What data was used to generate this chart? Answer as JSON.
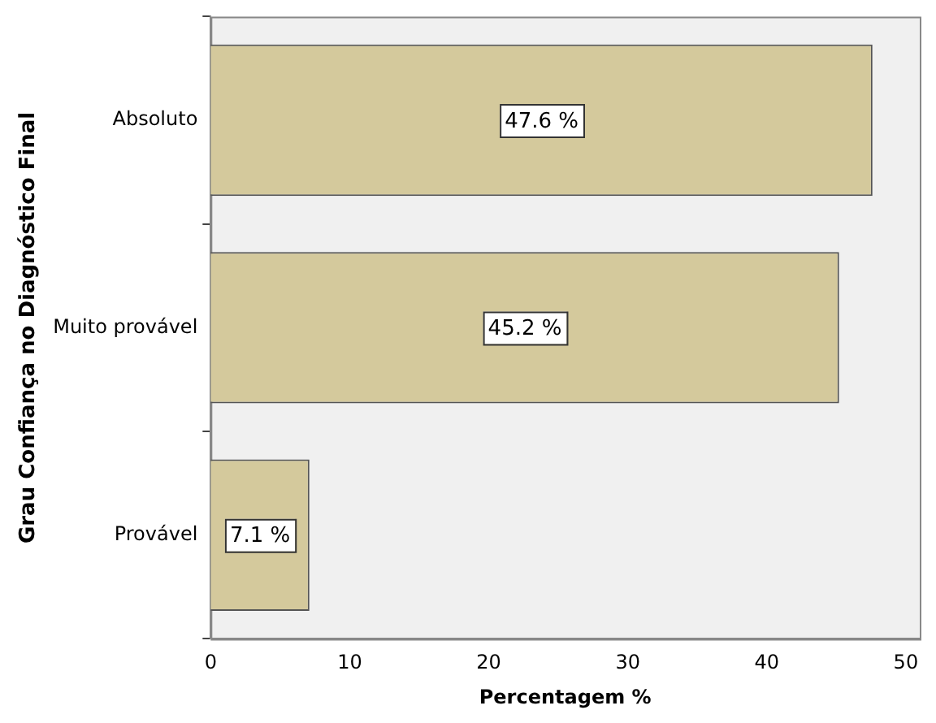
{
  "chart_data": {
    "type": "bar",
    "orientation": "horizontal",
    "xlabel": "Percentagem %",
    "ylabel": "Grau Confiança no Diagnóstico Final",
    "categories": [
      "Absoluto",
      "Muito provável",
      "Provável"
    ],
    "values": [
      47.6,
      45.2,
      7.1
    ],
    "color": "#d4c99c",
    "value_labels": [
      "47.6 %",
      "45.2 %",
      "7.1 %"
    ],
    "xlim": [
      0,
      51
    ],
    "xticks": [
      0,
      10,
      20,
      30,
      40,
      50
    ],
    "grid": false,
    "legend": false
  }
}
